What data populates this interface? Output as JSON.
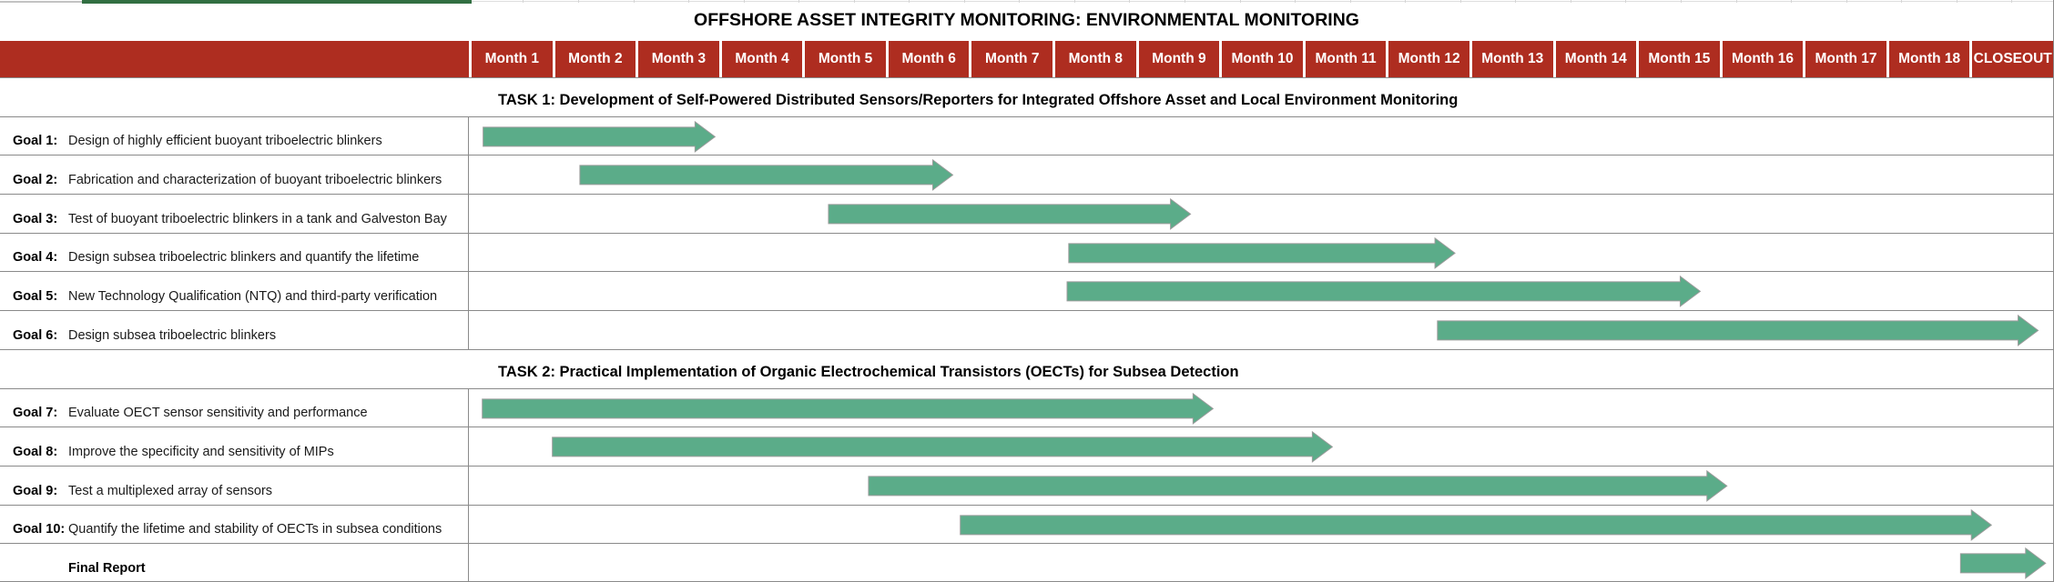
{
  "page": {
    "title": "OFFSHORE ASSET INTEGRITY MONITORING: ENVIRONMENTAL MONITORING"
  },
  "colors": {
    "header_bg": "#AE2D20",
    "header_text": "#FFFFFF",
    "arrow_fill": "#5BAC89",
    "arrow_stroke": "#9B9B9B",
    "grid_line": "#8A8A8A",
    "top_accent_green": "#326F42"
  },
  "chart_data": {
    "type": "gantt",
    "time_unit": "month",
    "columns": [
      "Month 1",
      "Month 2",
      "Month 3",
      "Month 4",
      "Month 5",
      "Month 6",
      "Month 7",
      "Month 8",
      "Month 9",
      "Month 10",
      "Month 11",
      "Month 12",
      "Month 13",
      "Month 14",
      "Month 15",
      "Month 16",
      "Month 17",
      "Month 18",
      "CLOSEOUT"
    ],
    "axis_note": "bar start/end measured in months from start of Month 1; CLOSEOUT is unit 18-19",
    "sections": [
      {
        "title": "TASK 1: Development of Self-Powered Distributed Sensors/Reporters for Integrated Offshore Asset and Local Environment Monitoring",
        "rows": [
          {
            "label": "Goal 1:",
            "description": "Design of highly efficient buoyant triboelectric blinkers",
            "start": 0.17,
            "end": 2.95
          },
          {
            "label": "Goal 2:",
            "description": "Fabrication and characterization of buoyant triboelectric blinkers",
            "start": 1.33,
            "end": 5.8
          },
          {
            "label": "Goal 3:",
            "description": "Test of buoyant triboelectric blinkers in a tank and Galveston Bay",
            "start": 4.31,
            "end": 8.65
          },
          {
            "label": "Goal 4:",
            "description": "Design subsea triboelectric blinkers and quantify the lifetime",
            "start": 7.19,
            "end": 11.82
          },
          {
            "label": "Goal 5:",
            "description": "New Technology Qualification (NTQ) and third-party verification",
            "start": 7.17,
            "end": 14.76
          },
          {
            "label": "Goal 6:",
            "description": "Design subsea triboelectric blinkers",
            "start": 11.61,
            "end": 18.81
          }
        ]
      },
      {
        "title": "TASK 2: Practical Implementation of Organic Electrochemical Transistors (OECTs) for Subsea Detection",
        "rows": [
          {
            "label": "Goal 7:",
            "description": "Evaluate OECT sensor sensitivity and performance",
            "start": 0.16,
            "end": 8.92
          },
          {
            "label": "Goal 8:",
            "description": "Improve the specificity and sensitivity of MIPs",
            "start": 1.0,
            "end": 10.35
          },
          {
            "label": "Goal 9:",
            "description": "Test a multiplexed array of sensors",
            "start": 4.79,
            "end": 15.08
          },
          {
            "label": "Goal 10:",
            "description": "Quantify the lifetime and stability of OECTs in subsea conditions",
            "start": 5.89,
            "end": 18.25
          },
          {
            "label": "",
            "description": "Final Report",
            "bold": true,
            "start": 17.88,
            "end": 18.9
          }
        ]
      }
    ]
  }
}
